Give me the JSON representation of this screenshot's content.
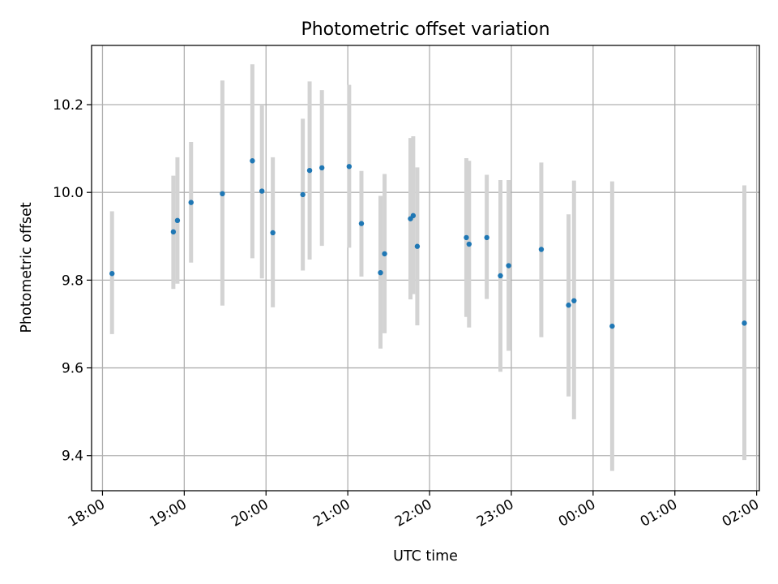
{
  "chart_data": {
    "type": "scatter",
    "title": "Photometric offset variation",
    "xlabel": "UTC time",
    "ylabel": "Photometric offset",
    "x_ticks": [
      "18:00",
      "19:00",
      "20:00",
      "21:00",
      "22:00",
      "23:00",
      "00:00",
      "01:00",
      "02:00"
    ],
    "y_ticks": [
      "9.4",
      "9.6",
      "9.8",
      "10.0",
      "10.2"
    ],
    "xlim": [
      "17:52",
      "02:02"
    ],
    "ylim": [
      9.32,
      10.335
    ],
    "grid": true,
    "colors": {
      "point": "#1f77b4",
      "errorbar": "#d3d3d3",
      "grid": "#b0b0b0"
    },
    "points": [
      {
        "time": "18:07",
        "y": 9.815,
        "ylow": 9.677,
        "yhigh": 9.957
      },
      {
        "time": "18:52",
        "y": 9.91,
        "ylow": 9.78,
        "yhigh": 10.038
      },
      {
        "time": "18:55",
        "y": 9.936,
        "ylow": 9.792,
        "yhigh": 10.08
      },
      {
        "time": "19:05",
        "y": 9.977,
        "ylow": 9.84,
        "yhigh": 10.115
      },
      {
        "time": "19:28",
        "y": 9.997,
        "ylow": 9.742,
        "yhigh": 10.255
      },
      {
        "time": "19:50",
        "y": 10.072,
        "ylow": 9.85,
        "yhigh": 10.292
      },
      {
        "time": "19:57",
        "y": 10.003,
        "ylow": 9.804,
        "yhigh": 10.2
      },
      {
        "time": "20:05",
        "y": 9.908,
        "ylow": 9.738,
        "yhigh": 10.08
      },
      {
        "time": "20:27",
        "y": 9.995,
        "ylow": 9.822,
        "yhigh": 10.168
      },
      {
        "time": "20:32",
        "y": 10.05,
        "ylow": 9.847,
        "yhigh": 10.253
      },
      {
        "time": "20:41",
        "y": 10.056,
        "ylow": 9.878,
        "yhigh": 10.233
      },
      {
        "time": "21:01",
        "y": 10.059,
        "ylow": 9.874,
        "yhigh": 10.245
      },
      {
        "time": "21:10",
        "y": 9.929,
        "ylow": 9.808,
        "yhigh": 10.049
      },
      {
        "time": "21:24",
        "y": 9.817,
        "ylow": 9.644,
        "yhigh": 9.992
      },
      {
        "time": "21:27",
        "y": 9.86,
        "ylow": 9.679,
        "yhigh": 10.042
      },
      {
        "time": "21:46",
        "y": 9.94,
        "ylow": 9.756,
        "yhigh": 10.124
      },
      {
        "time": "21:48",
        "y": 9.947,
        "ylow": 9.768,
        "yhigh": 10.128
      },
      {
        "time": "21:51",
        "y": 9.877,
        "ylow": 9.697,
        "yhigh": 10.057
      },
      {
        "time": "22:27",
        "y": 9.897,
        "ylow": 9.716,
        "yhigh": 10.078
      },
      {
        "time": "22:29",
        "y": 9.882,
        "ylow": 9.692,
        "yhigh": 10.072
      },
      {
        "time": "22:42",
        "y": 9.897,
        "ylow": 9.757,
        "yhigh": 10.04
      },
      {
        "time": "22:52",
        "y": 9.81,
        "ylow": 9.591,
        "yhigh": 10.028
      },
      {
        "time": "22:58",
        "y": 9.833,
        "ylow": 9.639,
        "yhigh": 10.028
      },
      {
        "time": "23:22",
        "y": 9.87,
        "ylow": 9.67,
        "yhigh": 10.068
      },
      {
        "time": "23:42",
        "y": 9.743,
        "ylow": 9.535,
        "yhigh": 9.95
      },
      {
        "time": "23:46",
        "y": 9.753,
        "ylow": 9.483,
        "yhigh": 10.027
      },
      {
        "time": "00:14",
        "y": 9.695,
        "ylow": 9.365,
        "yhigh": 10.025
      },
      {
        "time": "01:51",
        "y": 9.702,
        "ylow": 9.39,
        "yhigh": 10.016
      }
    ]
  }
}
